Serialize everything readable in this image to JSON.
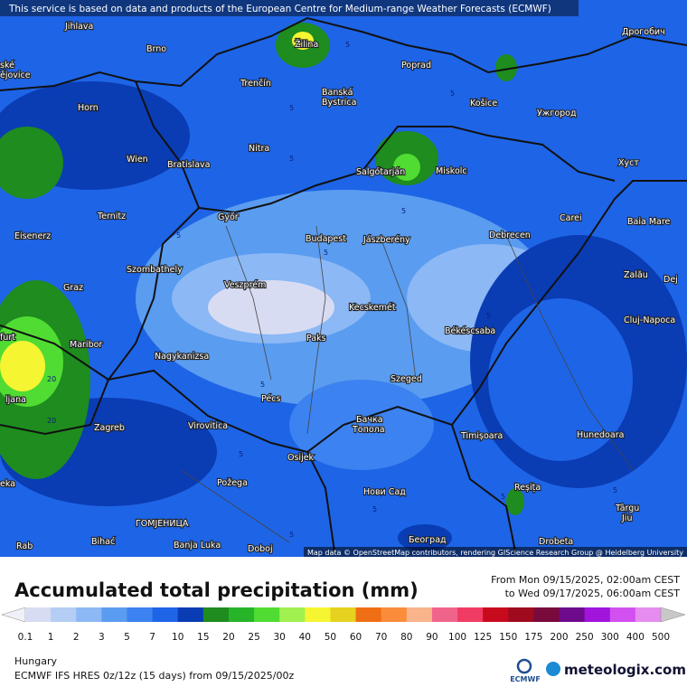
{
  "banner": "This service is based on data and products of the European Centre for Medium-range Weather Forecasts (ECMWF)",
  "attribution": "Map data © OpenStreetMap contributors, rendering GIScience Research Group @ Heidelberg University",
  "cities": [
    "Jihlava",
    "Brno",
    "Žilina",
    "Poprad",
    "Дрогобич",
    "ské",
    "ějovice",
    "Trenčín",
    "Banská",
    "Bystrica",
    "Košice",
    "Ужгород",
    "Horn",
    "Nitra",
    "Wien",
    "Bratislava",
    "Salgótarján",
    "Miskolc",
    "Хуст",
    "Ternitz",
    "Győr",
    "Carei",
    "Baia Mare",
    "Eisenerz",
    "Budapest",
    "Jászberény",
    "Debrecen",
    "Szombathely",
    "Zalău",
    "Graz",
    "Veszprém",
    "Dej",
    "Kecskemét",
    "Cluj-Napoca",
    "furt",
    "Maribor",
    "Paks",
    "Békéscsaba",
    "Nagykanizsa",
    "ljana",
    "Szeged",
    "Pécs",
    "Бачка",
    "Топола",
    "Virovitica",
    "Zagreb",
    "Timișoara",
    "Hunedoara",
    "Osijek",
    "Požega",
    "eka",
    "Нови Сад",
    "Reșița",
    "Târgu",
    "Jiu",
    "ГОМЈЕНИЦА",
    "Bihać",
    "Banja Luka",
    "Doboj",
    "Београд",
    "Drobeta",
    "Rab"
  ],
  "contours": [
    "5",
    "5",
    "5",
    "5",
    "5",
    "5",
    "5",
    "5",
    "5",
    "5",
    "5",
    "20",
    "20",
    "5",
    "5",
    "5"
  ],
  "legend": {
    "title": "Accumulated total precipitation (mm)",
    "from": "From Mon 09/15/2025, 02:00am CEST",
    "to": "to Wed 09/17/2025, 06:00am CEST",
    "ticks": [
      "0.1",
      "1",
      "2",
      "3",
      "5",
      "7",
      "10",
      "15",
      "20",
      "25",
      "30",
      "40",
      "50",
      "60",
      "70",
      "80",
      "90",
      "100",
      "125",
      "150",
      "175",
      "200",
      "250",
      "300",
      "400",
      "500"
    ],
    "colors": [
      "#f0f0fa",
      "#d8dcf2",
      "#b4cdf5",
      "#8cb8f5",
      "#5a9cf0",
      "#3c82f0",
      "#1e64e6",
      "#0a3cb4",
      "#1e8c1e",
      "#28b428",
      "#50dc32",
      "#a0f050",
      "#f5f532",
      "#e6d21e",
      "#f06e14",
      "#fa8c3c",
      "#fab48c",
      "#f0648c",
      "#f03c64",
      "#c80a1e",
      "#a00a1e",
      "#780a3c",
      "#6e0a8c",
      "#a014dc",
      "#d250f0",
      "#e68cf0",
      "#f0c8f5",
      "#c8c8c8"
    ]
  },
  "footer": {
    "region": "Hungary",
    "model": "ECMWF IFS HRES 0z/12z (15 days) from  09/15/2025/00z",
    "ecmwf": "ECMWF",
    "brand": "meteologix.com"
  }
}
